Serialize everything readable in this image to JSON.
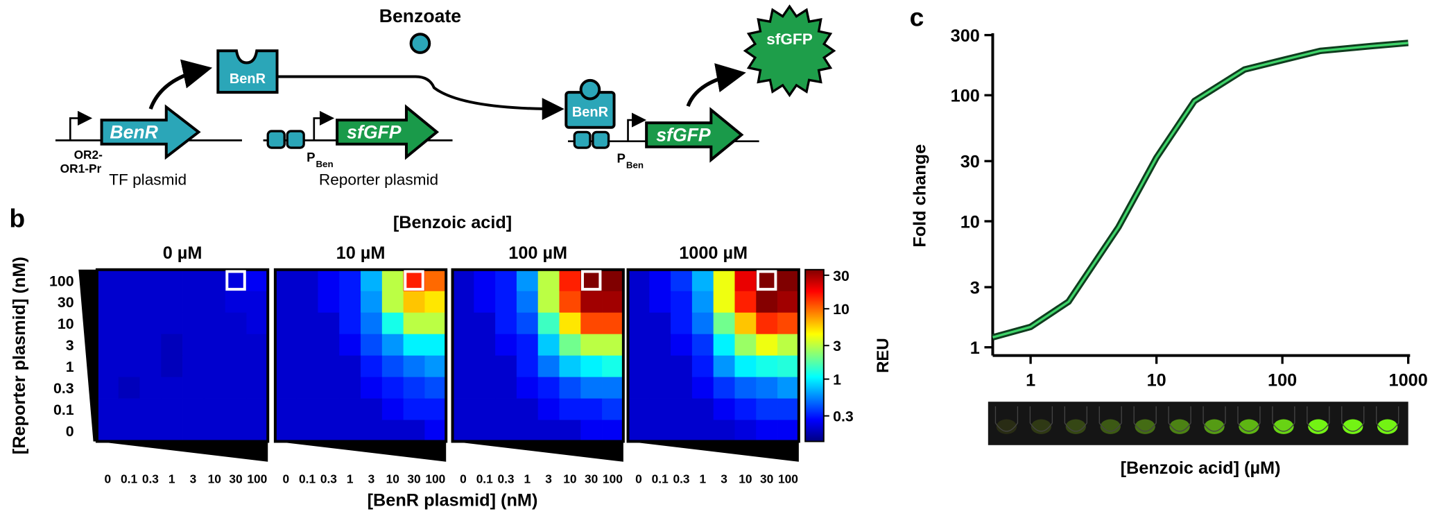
{
  "diagram": {
    "benzoate": "Benzoate",
    "benr_protein_free": "BenR",
    "benr_protein_bound": "BenR",
    "benr_gene": "BenR",
    "sfgfp_gene_reporter": "sfGFP",
    "sfgfp_gene_active": "sfGFP",
    "sfgfp_product": "sfGFP",
    "promoter_line1": "OR2-",
    "promoter_line2": "OR1-Pr",
    "tf_plasmid": "TF plasmid",
    "reporter_plasmid": "Reporter plasmid",
    "pben_p": "P",
    "pben_sub": "Ben"
  },
  "panel_labels": [
    "b",
    "c"
  ],
  "chart_data": [
    {
      "type": "heatmap",
      "title": "[Benzoic acid]",
      "x_label": "[BenR plasmid] (nM)",
      "y_label": "[Reporter plasmid] (nM)",
      "x_categories": [
        "0",
        "0.1",
        "0.3",
        "1",
        "3",
        "10",
        "30",
        "100"
      ],
      "y_categories": [
        "100",
        "30",
        "10",
        "3",
        "1",
        "0.3",
        "0.1",
        "0"
      ],
      "series": [
        {
          "name": "0 µM",
          "values": [
            [
              0.2,
              0.2,
              0.2,
              0.2,
              0.2,
              0.2,
              0.22,
              0.25
            ],
            [
              0.2,
              0.2,
              0.2,
              0.2,
              0.2,
              0.2,
              0.22,
              0.22
            ],
            [
              0.2,
              0.2,
              0.2,
              0.2,
              0.2,
              0.2,
              0.2,
              0.22
            ],
            [
              0.2,
              0.2,
              0.2,
              0.18,
              0.2,
              0.2,
              0.2,
              0.2
            ],
            [
              0.2,
              0.2,
              0.2,
              0.18,
              0.2,
              0.2,
              0.2,
              0.2
            ],
            [
              0.2,
              0.18,
              0.2,
              0.2,
              0.2,
              0.2,
              0.2,
              0.2
            ],
            [
              0.2,
              0.2,
              0.2,
              0.2,
              0.2,
              0.2,
              0.2,
              0.2
            ],
            [
              0.2,
              0.2,
              0.2,
              0.2,
              0.2,
              0.2,
              0.2,
              0.2
            ]
          ]
        },
        {
          "name": "10 µM",
          "values": [
            [
              0.2,
              0.2,
              0.25,
              0.3,
              0.7,
              3,
              15,
              10
            ],
            [
              0.2,
              0.2,
              0.25,
              0.3,
              0.6,
              3,
              6,
              5
            ],
            [
              0.2,
              0.2,
              0.2,
              0.3,
              0.5,
              1.2,
              3,
              3
            ],
            [
              0.2,
              0.2,
              0.2,
              0.25,
              0.4,
              0.6,
              1,
              1
            ],
            [
              0.2,
              0.2,
              0.2,
              0.2,
              0.3,
              0.4,
              0.5,
              0.6
            ],
            [
              0.2,
              0.2,
              0.2,
              0.2,
              0.25,
              0.3,
              0.35,
              0.4
            ],
            [
              0.2,
              0.2,
              0.2,
              0.2,
              0.2,
              0.25,
              0.3,
              0.3
            ],
            [
              0.2,
              0.2,
              0.2,
              0.2,
              0.2,
              0.2,
              0.2,
              0.25
            ]
          ]
        },
        {
          "name": "100 µM",
          "values": [
            [
              0.2,
              0.25,
              0.3,
              0.6,
              3,
              15,
              40,
              40
            ],
            [
              0.2,
              0.25,
              0.3,
              0.5,
              3,
              12,
              30,
              30
            ],
            [
              0.2,
              0.2,
              0.3,
              0.4,
              1.5,
              5,
              12,
              12
            ],
            [
              0.2,
              0.2,
              0.25,
              0.3,
              0.8,
              2,
              3,
              3
            ],
            [
              0.2,
              0.2,
              0.2,
              0.3,
              0.5,
              0.8,
              1,
              1.2
            ],
            [
              0.2,
              0.2,
              0.2,
              0.25,
              0.3,
              0.4,
              0.5,
              0.5
            ],
            [
              0.2,
              0.2,
              0.2,
              0.2,
              0.25,
              0.3,
              0.3,
              0.35
            ],
            [
              0.2,
              0.2,
              0.2,
              0.2,
              0.2,
              0.2,
              0.25,
              0.25
            ]
          ]
        },
        {
          "name": "1000 µM",
          "values": [
            [
              0.2,
              0.25,
              0.35,
              0.7,
              4,
              20,
              40,
              40
            ],
            [
              0.2,
              0.25,
              0.3,
              0.6,
              4,
              15,
              35,
              30
            ],
            [
              0.2,
              0.2,
              0.3,
              0.5,
              2,
              6,
              14,
              12
            ],
            [
              0.2,
              0.2,
              0.25,
              0.35,
              1,
              2.5,
              4,
              3
            ],
            [
              0.2,
              0.2,
              0.2,
              0.3,
              0.6,
              1,
              1.2,
              1.3
            ],
            [
              0.2,
              0.2,
              0.2,
              0.25,
              0.35,
              0.45,
              0.5,
              0.6
            ],
            [
              0.2,
              0.2,
              0.2,
              0.2,
              0.25,
              0.3,
              0.35,
              0.35
            ],
            [
              0.2,
              0.2,
              0.2,
              0.2,
              0.2,
              0.22,
              0.25,
              0.25
            ]
          ]
        }
      ],
      "highlight": {
        "row": 0,
        "col": 6
      },
      "colorbar": {
        "label": "REU",
        "lim": [
          0.13,
          36
        ],
        "ticks": [
          0.3,
          1,
          3,
          10,
          30
        ],
        "log": true,
        "colormap": "jet"
      }
    },
    {
      "type": "line",
      "x_label": "[Benzoic acid] (µM)",
      "y_label": "Fold change",
      "x": [
        0.5,
        1,
        2,
        5,
        10,
        20,
        50,
        100,
        200,
        500,
        1000
      ],
      "series": [
        {
          "color": "#3fd46a",
          "edge_color": "#0f3d1e",
          "values": [
            1.2,
            1.45,
            2.3,
            9,
            32,
            90,
            160,
            190,
            225,
            245,
            260
          ]
        }
      ],
      "xlim": [
        0.5,
        1000
      ],
      "ylim": [
        0.86,
        300
      ],
      "xticks": [
        1,
        10,
        100,
        1000
      ],
      "yticks": [
        1,
        3,
        10,
        30,
        100,
        300
      ],
      "log_x": true,
      "log_y": true
    }
  ]
}
